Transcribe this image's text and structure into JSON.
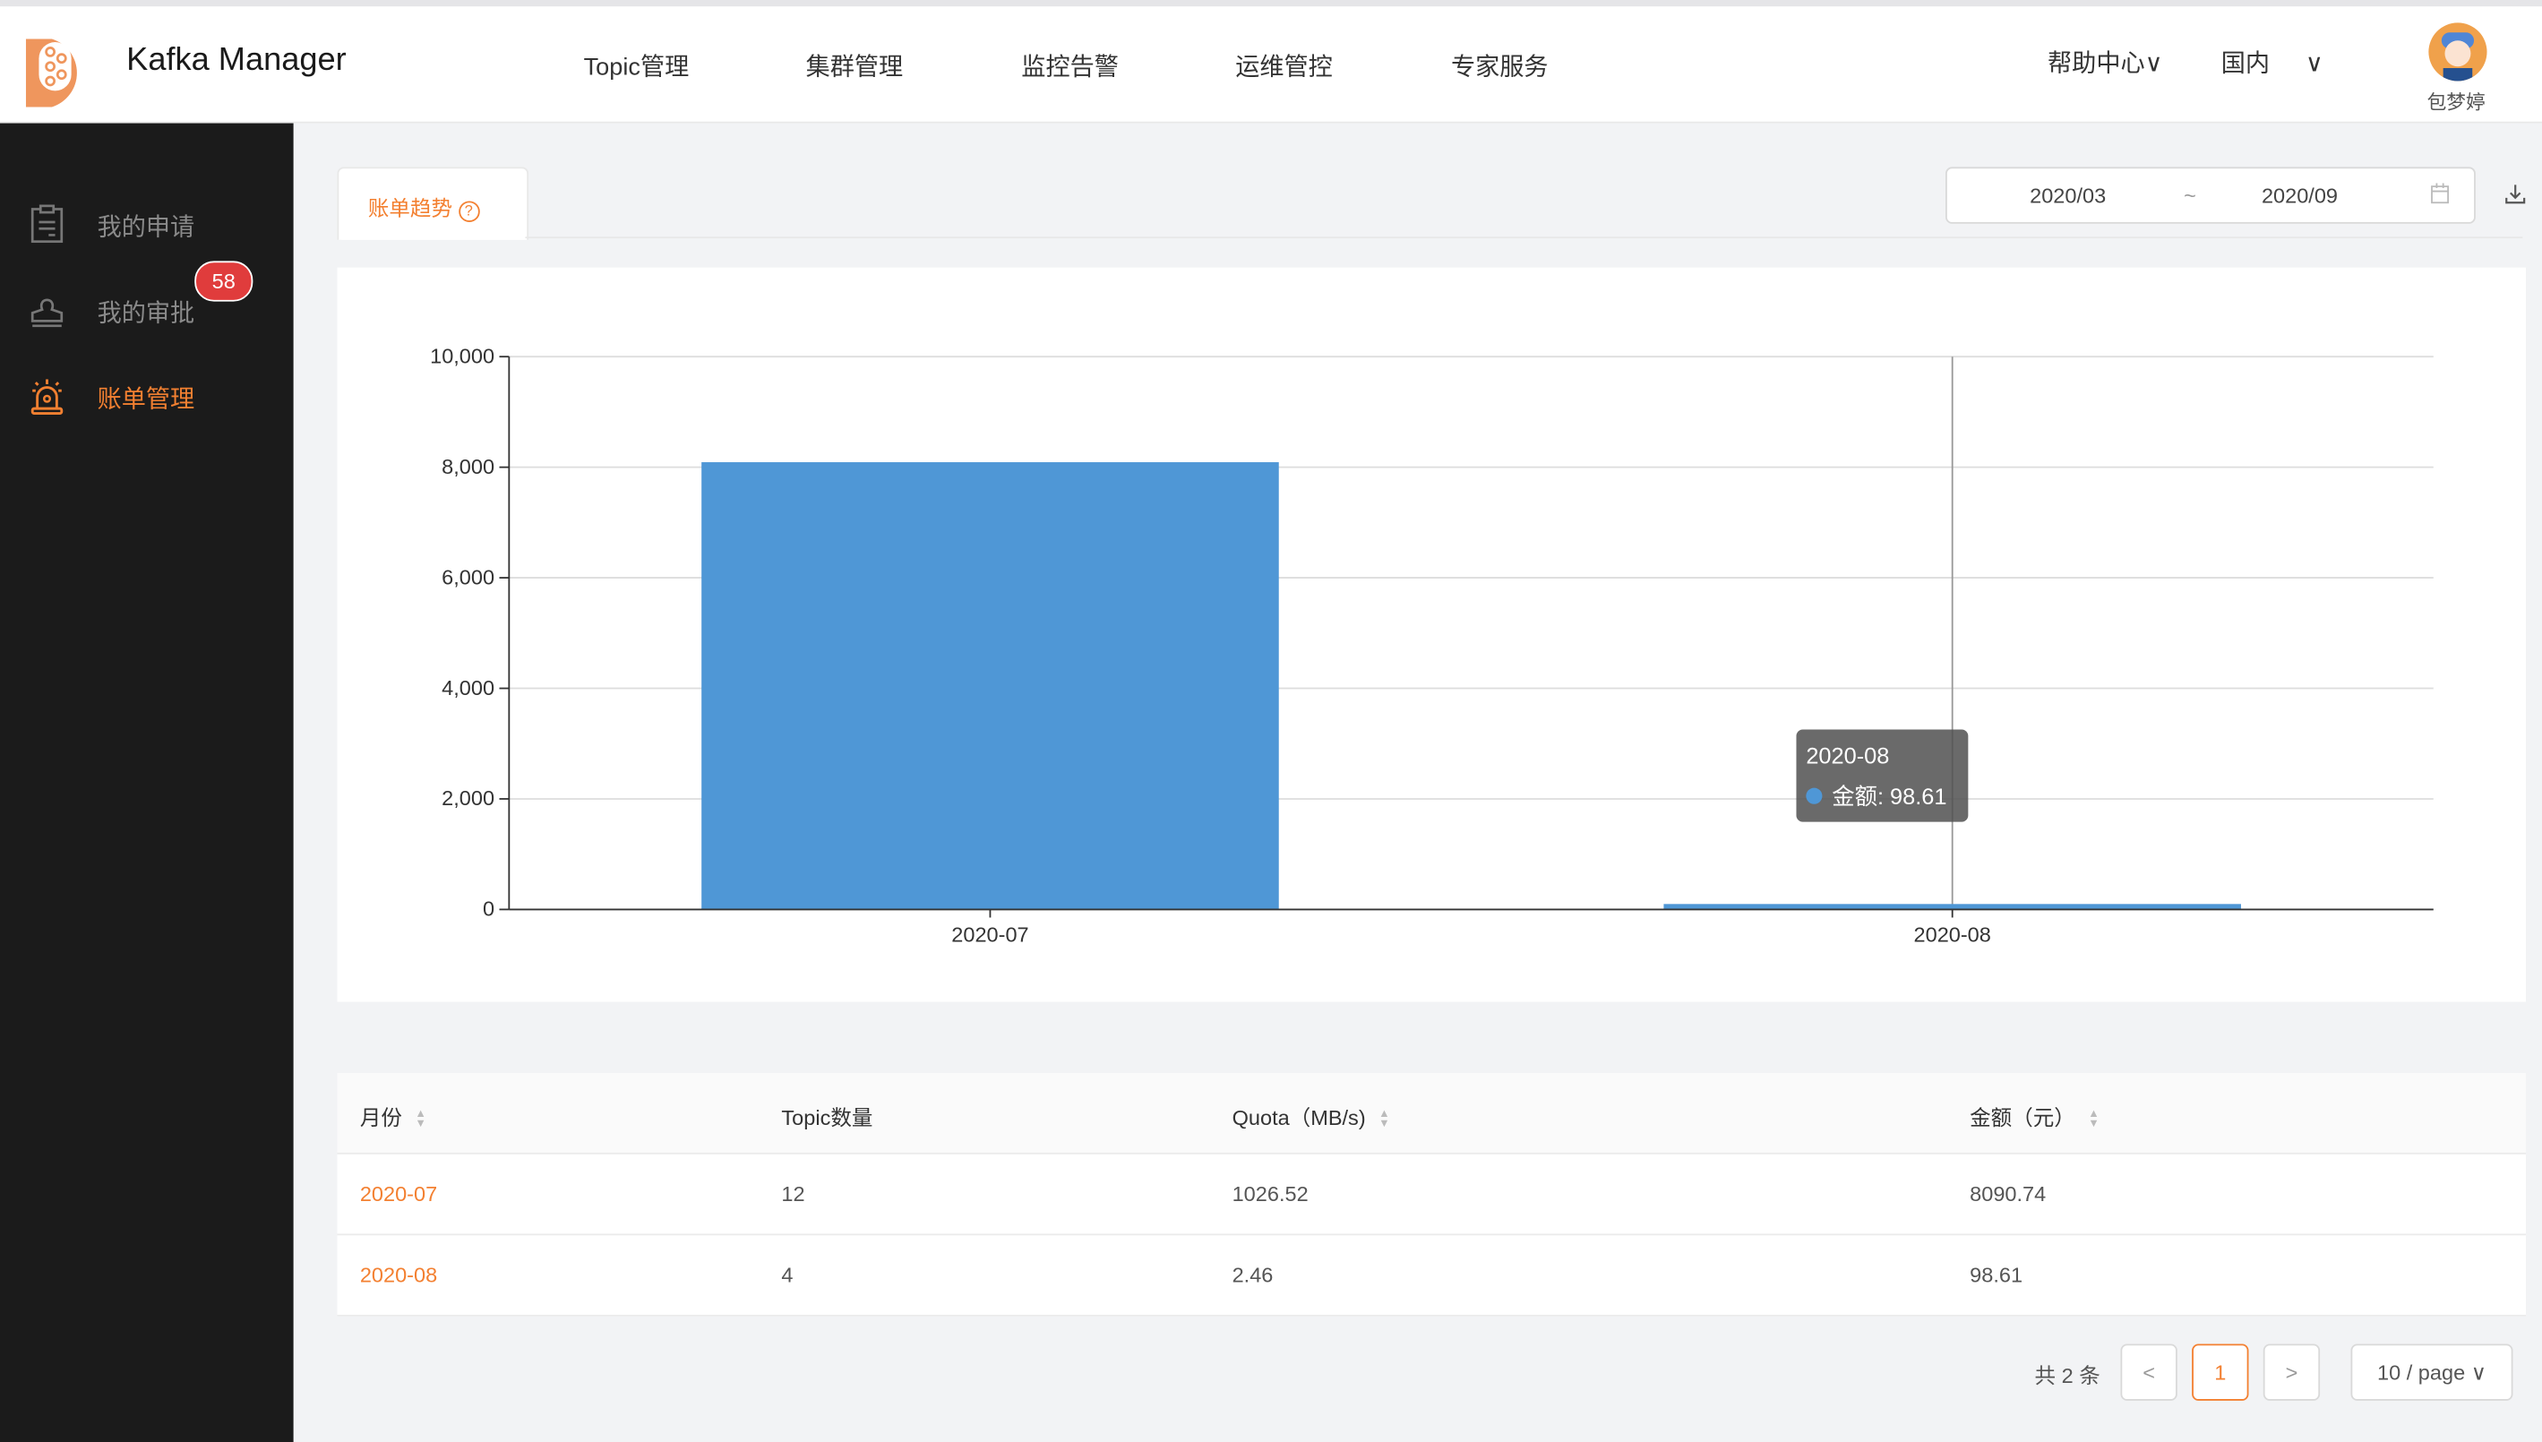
{
  "header": {
    "brand": "Kafka Manager",
    "nav": [
      "Topic管理",
      "集群管理",
      "监控告警",
      "运维管控",
      "专家服务"
    ],
    "help": "帮助中心",
    "region": "国内",
    "user": "包梦婷"
  },
  "sidebar": {
    "items": [
      {
        "label": "我的申请",
        "icon": "clipboard-icon"
      },
      {
        "label": "我的审批",
        "icon": "stamp-icon",
        "badge": "58"
      },
      {
        "label": "账单管理",
        "icon": "alarm-light-icon",
        "active": true
      }
    ]
  },
  "main": {
    "tab": "账单趋势",
    "date_range": {
      "start": "2020/03",
      "separator": "~",
      "end": "2020/09"
    },
    "tooltip": {
      "title": "2020-08",
      "label": "金额: 98.61"
    },
    "table": {
      "headers": [
        "月份",
        "Topic数量",
        "Quota（MB/s)",
        "金额（元）"
      ],
      "rows": [
        [
          "2020-07",
          "12",
          "1026.52",
          "8090.74"
        ],
        [
          "2020-08",
          "4",
          "2.46",
          "98.61"
        ]
      ]
    },
    "pagination": {
      "total": "共 2 条",
      "page": "1",
      "page_size": "10 / page"
    }
  },
  "colors": {
    "accent": "#f38031",
    "bar": "#4f97d6",
    "sidebar": "#1b1b1b"
  },
  "chart_data": {
    "type": "bar",
    "categories": [
      "2020-07",
      "2020-08"
    ],
    "values": [
      8090.74,
      98.61
    ],
    "ylim": [
      0,
      10000
    ],
    "yticks": [
      "0",
      "2,000",
      "4,000",
      "6,000",
      "8,000",
      "10,000"
    ],
    "grid": true,
    "series_label": "金额"
  }
}
